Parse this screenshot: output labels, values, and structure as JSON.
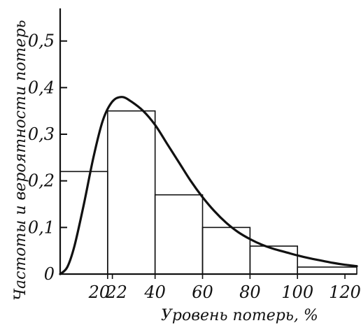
{
  "chart_data": {
    "type": "bar",
    "title": "",
    "xlabel": "Уровень потерь, %",
    "ylabel": "Частоты и вероятности потерь",
    "xlim": [
      0,
      125
    ],
    "ylim": [
      0,
      0.57
    ],
    "x_ticks": [
      {
        "value": 20,
        "label": "20"
      },
      {
        "value": 22,
        "label": "22"
      },
      {
        "value": 40,
        "label": "40"
      },
      {
        "value": 60,
        "label": "60"
      },
      {
        "value": 80,
        "label": "80"
      },
      {
        "value": 100,
        "label": "100"
      },
      {
        "value": 120,
        "label": "120"
      }
    ],
    "y_ticks": [
      {
        "value": 0,
        "label": "0"
      },
      {
        "value": 0.1,
        "label": "0,1"
      },
      {
        "value": 0.2,
        "label": "0,2"
      },
      {
        "value": 0.3,
        "label": "0,3"
      },
      {
        "value": 0.4,
        "label": "0,4"
      },
      {
        "value": 0.5,
        "label": "0,5"
      }
    ],
    "histogram_bins": [
      {
        "x0": 0,
        "x1": 20,
        "value": 0.22
      },
      {
        "x0": 20,
        "x1": 40,
        "value": 0.35
      },
      {
        "x0": 40,
        "x1": 60,
        "value": 0.17
      },
      {
        "x0": 60,
        "x1": 80,
        "value": 0.1
      },
      {
        "x0": 80,
        "x1": 100,
        "value": 0.06
      },
      {
        "x0": 100,
        "x1": 125,
        "value": 0.015
      }
    ],
    "curve": {
      "type": "line",
      "x": [
        0,
        3,
        6,
        10,
        14,
        18,
        22,
        26,
        30,
        35,
        40,
        45,
        50,
        55,
        60,
        65,
        70,
        75,
        80,
        85,
        90,
        95,
        100,
        105,
        110,
        115,
        120,
        125
      ],
      "y": [
        0,
        0.015,
        0.06,
        0.15,
        0.25,
        0.33,
        0.37,
        0.38,
        0.37,
        0.35,
        0.32,
        0.28,
        0.24,
        0.2,
        0.165,
        0.135,
        0.11,
        0.09,
        0.075,
        0.063,
        0.054,
        0.047,
        0.04,
        0.034,
        0.029,
        0.024,
        0.02,
        0.017
      ]
    },
    "grid": false,
    "legend": "none"
  }
}
